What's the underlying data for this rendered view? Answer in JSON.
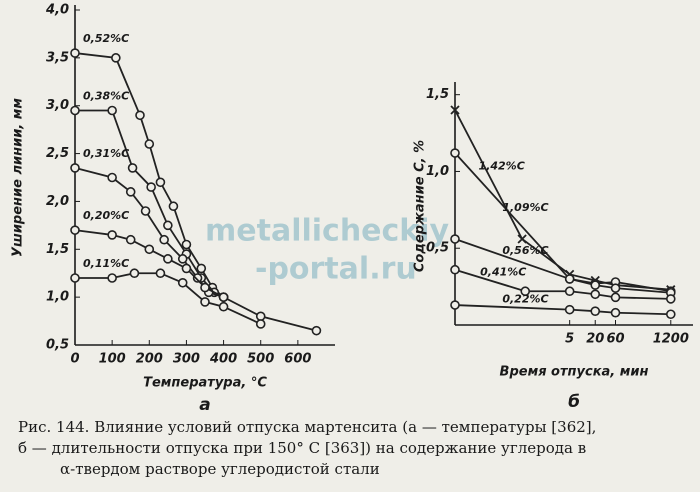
{
  "chart_data": [
    {
      "type": "line",
      "panel": "а",
      "xlabel": "Температура, °C",
      "ylabel": "Уширение линии, мм",
      "xlim": [
        0,
        700
      ],
      "ylim": [
        0.5,
        4.0
      ],
      "xticks": [
        0,
        100,
        200,
        300,
        400,
        500,
        600
      ],
      "yticks": [
        {
          "value": 0.5,
          "label": "0,5"
        },
        {
          "value": 1.0,
          "label": "1,0"
        },
        {
          "value": 1.5,
          "label": "1,5"
        },
        {
          "value": 2.0,
          "label": "2,0"
        },
        {
          "value": 2.5,
          "label": "2,5"
        },
        {
          "value": 3.0,
          "label": "3,0"
        },
        {
          "value": 3.5,
          "label": "3,5"
        },
        {
          "value": 4.0,
          "label": "4,0"
        }
      ],
      "series": [
        {
          "name": "0,52%C",
          "color": "#222",
          "marker": "o",
          "x": [
            0,
            110,
            175,
            200,
            230,
            265,
            300,
            340,
            370,
            400,
            500,
            650
          ],
          "values": [
            3.55,
            3.5,
            2.9,
            2.6,
            2.2,
            1.95,
            1.55,
            1.3,
            1.1,
            1.0,
            0.8,
            0.65
          ]
        },
        {
          "name": "0,38%C",
          "color": "#222",
          "marker": "o",
          "x": [
            0,
            100,
            155,
            205,
            250,
            300,
            340,
            375,
            400
          ],
          "values": [
            2.95,
            2.95,
            2.35,
            2.15,
            1.75,
            1.45,
            1.2,
            1.05,
            1.0
          ]
        },
        {
          "name": "0,31%C",
          "color": "#222",
          "marker": "o",
          "x": [
            0,
            100,
            150,
            190,
            240,
            290,
            330,
            360,
            400
          ],
          "values": [
            2.35,
            2.25,
            2.1,
            1.9,
            1.6,
            1.4,
            1.2,
            1.05,
            1.0
          ]
        },
        {
          "name": "0,20%C",
          "color": "#222",
          "marker": "o",
          "x": [
            0,
            100,
            150,
            200,
            250,
            300,
            350,
            400
          ],
          "values": [
            1.7,
            1.65,
            1.6,
            1.5,
            1.4,
            1.3,
            1.1,
            1.0
          ]
        },
        {
          "name": "0,11%C",
          "color": "#222",
          "marker": "o",
          "x": [
            0,
            100,
            160,
            230,
            290,
            350,
            400,
            500
          ],
          "values": [
            1.2,
            1.2,
            1.25,
            1.25,
            1.15,
            0.95,
            0.9,
            0.72
          ]
        }
      ]
    },
    {
      "type": "line",
      "panel": "б",
      "xlabel": "Время отпуска, мин",
      "ylabel": "Содержание C, %",
      "log_x": true,
      "xlim": [
        0.01,
        4000
      ],
      "ylim": [
        0,
        1.55
      ],
      "xticks": [
        5,
        20,
        60,
        1200
      ],
      "yticks": [
        {
          "value": 0.5,
          "label": "0,5"
        },
        {
          "value": 1.0,
          "label": "1,0"
        },
        {
          "value": 1.5,
          "label": "1,5"
        }
      ],
      "series": [
        {
          "name": "1,42%C",
          "color": "#222",
          "marker": "x",
          "x": [
            0.01,
            0.38,
            5,
            20,
            60,
            1200
          ],
          "values": [
            1.4,
            0.56,
            0.33,
            0.29,
            0.26,
            0.23
          ]
        },
        {
          "name": "1,09%C",
          "color": "#222",
          "marker": "o",
          "x": [
            0.01,
            5,
            20,
            60,
            1200
          ],
          "values": [
            1.12,
            0.3,
            0.27,
            0.28,
            0.22
          ]
        },
        {
          "name": "0,56%C",
          "color": "#222",
          "marker": "o",
          "x": [
            0.01,
            5,
            20,
            60,
            1200
          ],
          "values": [
            0.56,
            0.3,
            0.26,
            0.24,
            0.21
          ]
        },
        {
          "name": "0,41%C",
          "color": "#222",
          "marker": "o",
          "x": [
            0.01,
            0.45,
            5,
            20,
            60,
            1200
          ],
          "values": [
            0.36,
            0.22,
            0.22,
            0.2,
            0.18,
            0.17
          ]
        },
        {
          "name": "0,22%C",
          "color": "#222",
          "marker": "o",
          "x": [
            0.01,
            5,
            20,
            60,
            1200
          ],
          "values": [
            0.13,
            0.1,
            0.09,
            0.08,
            0.07
          ]
        }
      ]
    }
  ],
  "watermark": [
    "metallicheckiy",
    "-portal.ru"
  ],
  "caption": [
    "Рис. 144. Влияние условий  отпуска  мартенсита (а — температуры [362],",
    "б — длительности отпуска при 150° С [363]) на содержание  углерода  в",
    "α-твердом растворе углеродистой стали"
  ]
}
